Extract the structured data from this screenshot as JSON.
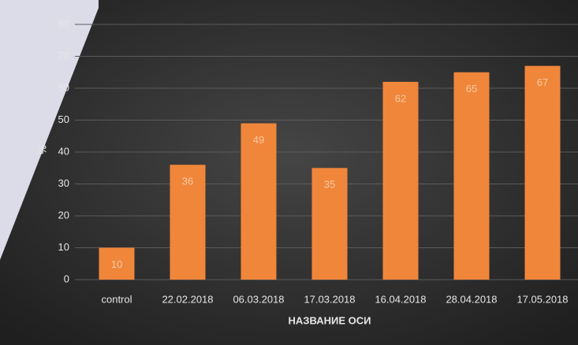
{
  "chart_data": {
    "type": "bar",
    "categories": [
      "control",
      "22.02.2018",
      "06.03.2018",
      "17.03.2018",
      "16.04.2018",
      "28.04.2018",
      "17.05.2018"
    ],
    "values": [
      10,
      36,
      49,
      35,
      62,
      65,
      67
    ],
    "color": "#f0863a",
    "y_label": "%",
    "x_label": "НАЗВАНИЕ ОСИ",
    "ylim": [
      0,
      80
    ],
    "yticks": [
      0,
      10,
      20,
      30,
      40,
      50,
      60,
      70,
      80
    ],
    "grid": true
  }
}
